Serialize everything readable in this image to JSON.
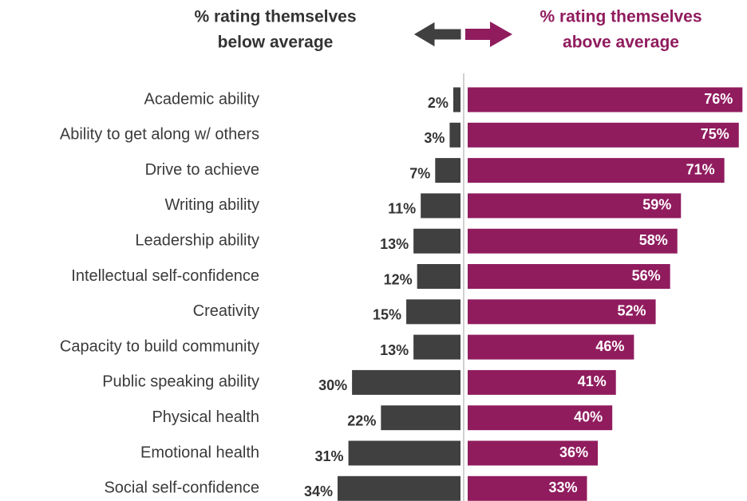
{
  "chart_data": {
    "type": "diverging_bar",
    "categories": [
      "Academic ability",
      "Ability to get along w/ others",
      "Drive to achieve",
      "Writing ability",
      "Leadership ability",
      "Intellectual self-confidence",
      "Creativity",
      "Capacity to build community",
      "Public speaking ability",
      "Physical health",
      "Emotional health",
      "Social self-confidence"
    ],
    "series": [
      {
        "name": [
          "% rating themselves",
          "below average"
        ],
        "color": "#404040",
        "side": "left",
        "values": [
          2,
          3,
          7,
          11,
          13,
          12,
          15,
          13,
          30,
          22,
          31,
          34
        ],
        "value_labels": [
          "2%",
          "3%",
          "7%",
          "11%",
          "13%",
          "12%",
          "15%",
          "13%",
          "30%",
          "22%",
          "31%",
          "34%"
        ]
      },
      {
        "name": [
          "% rating themselves",
          "above average"
        ],
        "color": "#901c5e",
        "side": "right",
        "values": [
          76,
          75,
          71,
          59,
          58,
          56,
          52,
          46,
          41,
          40,
          36,
          33
        ],
        "value_labels": [
          "76%",
          "75%",
          "71%",
          "59%",
          "58%",
          "56%",
          "52%",
          "46%",
          "41%",
          "40%",
          "36%",
          "33%"
        ]
      }
    ]
  }
}
